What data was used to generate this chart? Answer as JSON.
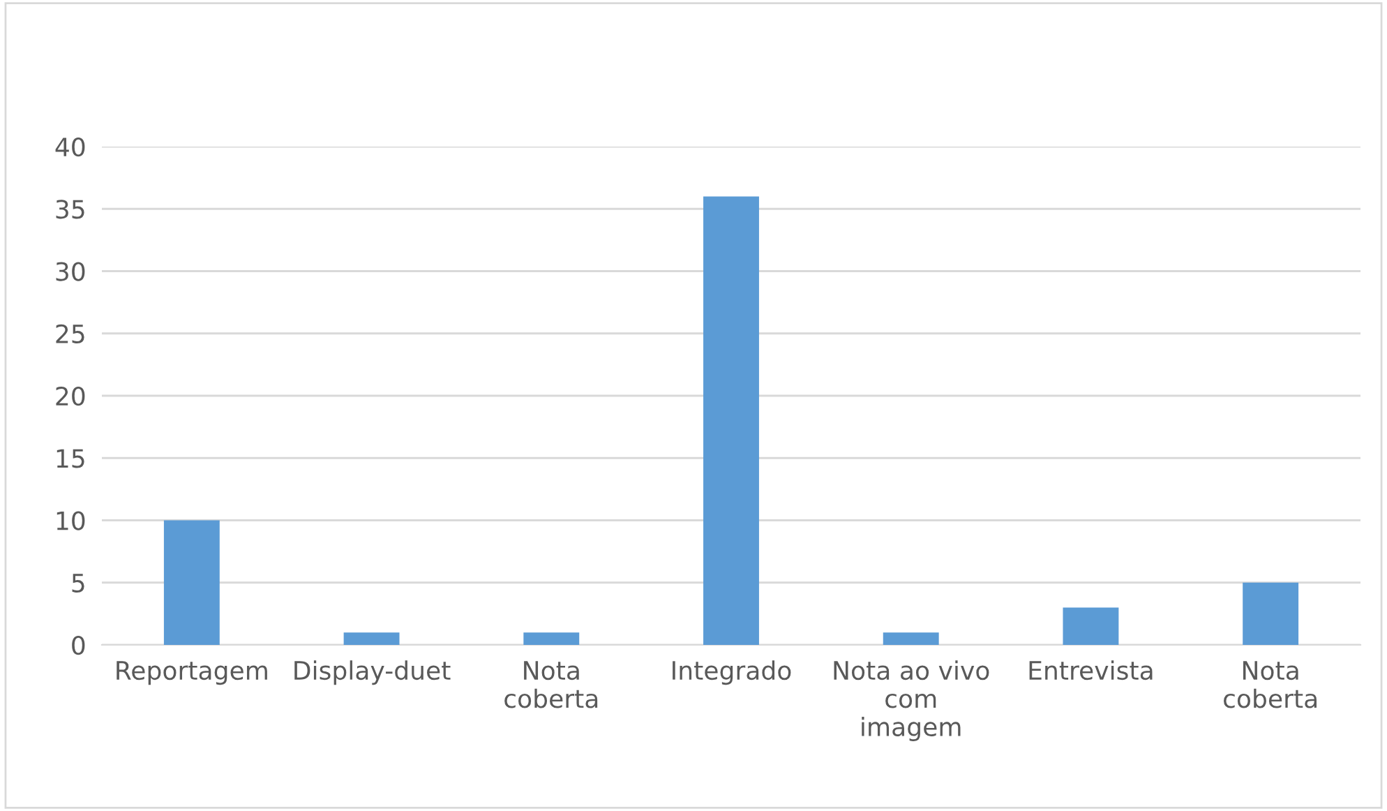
{
  "chart_data": {
    "type": "bar",
    "categories": [
      "Reportagem",
      "Display-duet",
      "Nota\ncoberta",
      "Integrado",
      "Nota ao vivo\ncom\nimagem",
      "Entrevista",
      "Nota\ncoberta"
    ],
    "values": [
      10,
      1,
      1,
      36,
      1,
      3,
      5
    ],
    "color": "#5b9bd5",
    "ylim": [
      0,
      40
    ],
    "yticks": [
      0,
      5,
      10,
      15,
      20,
      25,
      30,
      35,
      40
    ],
    "grid": "y",
    "legend": false
  }
}
